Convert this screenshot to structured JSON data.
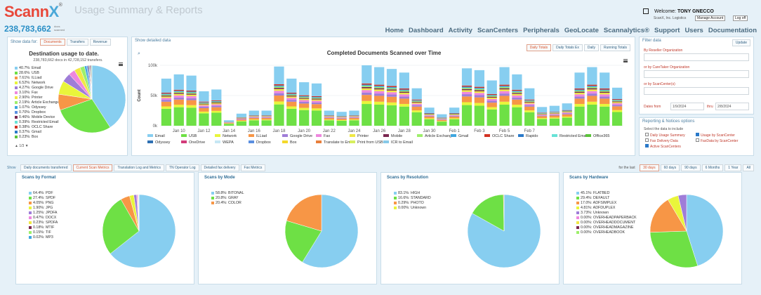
{
  "app": {
    "logo_main": "Scann",
    "logo_x": "X",
    "logo_sup": "®",
    "count": "238,783,662",
    "count_sub1": "docs",
    "count_sub2": "scanned",
    "page_title": "Usage Summary & Reports"
  },
  "user": {
    "welcome": "Welcome:",
    "name": "TONY GNECCO",
    "org": "ScanX, Inc. Logistics",
    "manage": "Manage Account",
    "logout": "Log off"
  },
  "nav": [
    "Home",
    "Dashboard",
    "Activity",
    "ScanCenters",
    "Peripherals",
    "GeoLocate",
    "Scannalytics®",
    "Support",
    "Users",
    "Documentation"
  ],
  "left": {
    "show_label": "Show data for:",
    "tabs": [
      "Documents",
      "Transfers",
      "Revenue"
    ],
    "title": "Destination usage to date.",
    "subtitle": "238,783,662 docs in 42,728,152 transfers.",
    "pager": "1/3",
    "items": [
      {
        "label": "40.7%: Email",
        "color": "#87cef0",
        "v": 40.7
      },
      {
        "label": "28.6%: USB",
        "color": "#6ee045",
        "v": 28.6
      },
      {
        "label": "7.61%: ILLiad",
        "color": "#f79646",
        "v": 7.61
      },
      {
        "label": "6.52%: Network",
        "color": "#e9f53b",
        "v": 6.52
      },
      {
        "label": "4.27%: Google Drive",
        "color": "#9f7dd8",
        "v": 4.27
      },
      {
        "label": "3.10%: Fax",
        "color": "#ee87de",
        "v": 3.1
      },
      {
        "label": "2.90%: Printer",
        "color": "#f0e844",
        "v": 2.9
      },
      {
        "label": "2.19%: Article Exchange",
        "color": "#9eef6b",
        "v": 2.19
      },
      {
        "label": "1.07%: Odyssey",
        "color": "#3ea6df",
        "v": 1.07
      },
      {
        "label": "0.70%: Dropbox",
        "color": "#5a8fe0",
        "v": 0.7
      },
      {
        "label": "0.46%: Mobile Device",
        "color": "#7a2750",
        "v": 0.46
      },
      {
        "label": "0.39%: Restricted Email",
        "color": "#67e2d6",
        "v": 0.39
      },
      {
        "label": "0.38%: OCLC Share",
        "color": "#d23223",
        "v": 0.38
      },
      {
        "label": "0.37%: Gmail",
        "color": "#2a79c9",
        "v": 0.37
      },
      {
        "label": "0.23%: Box",
        "color": "#5bc43a",
        "v": 0.23
      }
    ]
  },
  "chart_data": {
    "type": "bar",
    "title": "Completed Documents Scanned over Time",
    "ylabel": "Count",
    "ylim": [
      0,
      100000
    ],
    "yticks": [
      "0k",
      "50k",
      "100k"
    ],
    "xticks": [
      "Jan 10",
      "Jan 12",
      "Jan 14",
      "Jan 16",
      "Jan 18",
      "Jan 20",
      "Jan 22",
      "Jan 24",
      "Jan 26",
      "Jan 28",
      "Jan 30",
      "Feb 1",
      "Feb 3",
      "Feb 5",
      "Feb 7"
    ],
    "totals": [
      78,
      85,
      83,
      57,
      60,
      9,
      20,
      25,
      25,
      98,
      78,
      72,
      70,
      25,
      23,
      25,
      100,
      97,
      94,
      88,
      62,
      30,
      19,
      30,
      95,
      92,
      75,
      97,
      85,
      62,
      31,
      33,
      37,
      88,
      97,
      88,
      63
    ],
    "series": [
      {
        "name": "Email",
        "color": "#87cef0"
      },
      {
        "name": "USB",
        "color": "#6ee045"
      },
      {
        "name": "Network",
        "color": "#e9f53b"
      },
      {
        "name": "ILLiad",
        "color": "#f79646"
      },
      {
        "name": "Google Drive",
        "color": "#9f7dd8"
      },
      {
        "name": "Fax",
        "color": "#ee87de"
      },
      {
        "name": "Printer",
        "color": "#f0e844"
      },
      {
        "name": "Mobile",
        "color": "#7a2750"
      },
      {
        "name": "Article Exchange",
        "color": "#9eef6b"
      },
      {
        "name": "Gmail",
        "color": "#3ea6df"
      },
      {
        "name": "OCLC Share",
        "color": "#d23223"
      },
      {
        "name": "Rapido",
        "color": "#2a79c9"
      },
      {
        "name": "Restricted Email",
        "color": "#67e2d6"
      },
      {
        "name": "Office365",
        "color": "#5bc43a"
      },
      {
        "name": "Odyssey",
        "color": "#2e6fb2"
      },
      {
        "name": "OneDrive",
        "color": "#d23b7a"
      },
      {
        "name": "WEPA",
        "color": "#c6e7f4"
      },
      {
        "name": "Dropbox",
        "color": "#5a8fe0"
      },
      {
        "name": "Box",
        "color": "#f4d92a"
      },
      {
        "name": "Translate to Email",
        "color": "#e87f3b"
      },
      {
        "name": "Print from USB",
        "color": "#d7ef5e"
      },
      {
        "name": "ICR to Email",
        "color": "#86c9e8"
      }
    ]
  },
  "center": {
    "show_label": "Show detailed data",
    "buttons": [
      "Daily Totals",
      "Daily Totals Ex",
      "Daily",
      "Running Totals"
    ]
  },
  "filter": {
    "title": "Filter data",
    "update": "Update",
    "by_reseller": "By Reseller Organization",
    "by_caretaker": "or by CareTaker Organization",
    "by_scancenter": "or by ScanCenter(s)",
    "dates_from": "Dates from",
    "from": "1/9/2024",
    "thru_label": "thru",
    "thru": "2/8/2024"
  },
  "reporting": {
    "title": "Reporting & Notices options",
    "subtitle": "Select the data to include",
    "opts": [
      "Daily Usage Summary",
      "Usage by ScanCenter",
      "Fax Delivery Data",
      "FaxData by ScanCenter",
      "Active ScanCenters"
    ]
  },
  "bottom": {
    "show": "Show",
    "tabs": [
      "Daily documents transferred",
      "Current Scan Metrics",
      "Translation Log and Metrics",
      "TN Operator Log",
      "Detailed fax delivery",
      "Fax Metrics"
    ],
    "for_last": "for the last",
    "periods": [
      "30 days",
      "60 days",
      "90 days",
      "6 Months",
      "1 Year",
      "All"
    ]
  },
  "cards": [
    {
      "title": "Scans by Format",
      "items": [
        {
          "label": "64.4%: PDF",
          "color": "#87cef0",
          "v": 64.4
        },
        {
          "label": "27.4%: SPDF",
          "color": "#6ee045",
          "v": 27.4
        },
        {
          "label": "4.05%: PNG",
          "color": "#f79646",
          "v": 4.05
        },
        {
          "label": "1.90%: JPG",
          "color": "#e9f53b",
          "v": 1.9
        },
        {
          "label": "1.25%: JPDFA",
          "color": "#9f7dd8",
          "v": 1.25
        },
        {
          "label": "0.47%: DOCX",
          "color": "#ee87de",
          "v": 0.47
        },
        {
          "label": "0.23%: SPDFA",
          "color": "#f0e844",
          "v": 0.23
        },
        {
          "label": "0.18%: MTIF",
          "color": "#7a2750",
          "v": 0.18
        },
        {
          "label": "0.15%: TIF",
          "color": "#9eef6b",
          "v": 0.15
        },
        {
          "label": "0.02%: MP3",
          "color": "#3ea6df",
          "v": 0.02
        }
      ]
    },
    {
      "title": "Scans by Mode",
      "items": [
        {
          "label": "58.8%: BITONAL",
          "color": "#87cef0",
          "v": 58.8
        },
        {
          "label": "20.8%: GRAY",
          "color": "#6ee045",
          "v": 20.8
        },
        {
          "label": "20.4%: COLOR",
          "color": "#f79646",
          "v": 20.4
        }
      ]
    },
    {
      "title": "Scans by Resolution",
      "items": [
        {
          "label": "83.1%: HIGH",
          "color": "#87cef0",
          "v": 83.1
        },
        {
          "label": "16.6%: STANDARD",
          "color": "#6ee045",
          "v": 16.6
        },
        {
          "label": "0.29%: PHOTO",
          "color": "#f79646",
          "v": 0.29
        },
        {
          "label": "0.00%: Unknown",
          "color": "#e9f53b",
          "v": 0.0
        }
      ]
    },
    {
      "title": "Scans by Hardware",
      "items": [
        {
          "label": "45.1%: FLATBED",
          "color": "#87cef0",
          "v": 45.1
        },
        {
          "label": "29.4%: DEFAULT",
          "color": "#6ee045",
          "v": 29.4
        },
        {
          "label": "17.0%: ADFSIMPLEX",
          "color": "#f79646",
          "v": 17.0
        },
        {
          "label": "4.81%: ADFDUPLEX",
          "color": "#e9f53b",
          "v": 4.81
        },
        {
          "label": "3.73%: Unknown",
          "color": "#9f7dd8",
          "v": 3.73
        },
        {
          "label": "0.00%: OVERHEADPAPERBACK",
          "color": "#ee87de",
          "v": 0.0
        },
        {
          "label": "0.00%: OVERHEADDOCUMENT",
          "color": "#f0e844",
          "v": 0.0
        },
        {
          "label": "0.00%: OVERHEADMAGAZINE",
          "color": "#7a2750",
          "v": 0.0
        },
        {
          "label": "0.00%: OVERHEADBOOK",
          "color": "#9eef6b",
          "v": 0.0
        }
      ]
    }
  ]
}
